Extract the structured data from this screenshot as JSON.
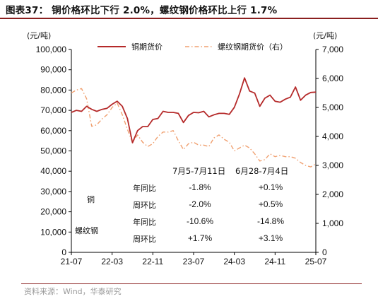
{
  "title": "图表37：  铜价格环比下行 2.0%，螺纹钢价格环比上行 1.7%",
  "source": "资料来源：Wind，华泰研究",
  "colors": {
    "copper": "#b52a2a",
    "rebar": "#f0a070",
    "rule": "#8a1f1f"
  },
  "chart_data": {
    "type": "line",
    "title": "",
    "left_unit": "(元/吨)",
    "right_unit": "(元/吨)",
    "ylim_left": [
      0,
      100000
    ],
    "ylim_right": [
      0,
      7000
    ],
    "y_ticks_left": [
      "0",
      "10,000",
      "20,000",
      "30,000",
      "40,000",
      "50,000",
      "60,000",
      "70,000",
      "80,000",
      "90,000",
      "100,000"
    ],
    "y_ticks_right": [
      "0",
      "1,000",
      "2,000",
      "3,000",
      "4,000",
      "5,000",
      "6,000",
      "7,000"
    ],
    "x_ticks": [
      "21-07",
      "22-03",
      "22-11",
      "23-07",
      "24-03",
      "24-11",
      "25-07"
    ],
    "legend_position": "top",
    "series": [
      {
        "name": "铜期货价",
        "axis": "left",
        "style": "solid",
        "points": [
          [
            "21-07",
            69000
          ],
          [
            "21-08",
            70000
          ],
          [
            "21-09",
            69500
          ],
          [
            "21-10",
            72000
          ],
          [
            "21-11",
            70500
          ],
          [
            "21-12",
            69500
          ],
          [
            "22-01",
            70500
          ],
          [
            "22-02",
            71000
          ],
          [
            "22-03",
            73000
          ],
          [
            "22-04",
            74500
          ],
          [
            "22-05",
            72000
          ],
          [
            "22-06",
            66000
          ],
          [
            "22-07",
            54000
          ],
          [
            "22-08",
            60000
          ],
          [
            "22-09",
            62000
          ],
          [
            "22-10",
            62000
          ],
          [
            "22-11",
            65500
          ],
          [
            "22-12",
            66000
          ],
          [
            "23-01",
            69500
          ],
          [
            "23-02",
            69000
          ],
          [
            "23-03",
            69000
          ],
          [
            "23-04",
            68500
          ],
          [
            "23-05",
            64000
          ],
          [
            "23-06",
            67500
          ],
          [
            "23-07",
            69000
          ],
          [
            "23-08",
            68800
          ],
          [
            "23-09",
            69500
          ],
          [
            "23-10",
            66800
          ],
          [
            "23-11",
            67800
          ],
          [
            "23-12",
            68500
          ],
          [
            "24-01",
            68500
          ],
          [
            "24-02",
            68000
          ],
          [
            "24-03",
            71500
          ],
          [
            "24-04",
            78000
          ],
          [
            "24-05",
            86000
          ],
          [
            "24-06",
            79500
          ],
          [
            "24-07",
            78500
          ],
          [
            "24-08",
            72000
          ],
          [
            "24-09",
            76000
          ],
          [
            "24-10",
            77500
          ],
          [
            "24-11",
            74500
          ],
          [
            "24-12",
            74000
          ],
          [
            "25-01",
            75500
          ],
          [
            "25-02",
            76500
          ],
          [
            "25-03",
            81500
          ],
          [
            "25-04",
            75000
          ],
          [
            "25-05",
            77500
          ],
          [
            "25-06",
            78800
          ],
          [
            "25-07",
            79000
          ]
        ]
      },
      {
        "name": "螺纹钢期货价（右）",
        "axis": "right",
        "style": "dashdot",
        "points": [
          [
            "21-07",
            5500
          ],
          [
            "21-08",
            5600
          ],
          [
            "21-09",
            5650
          ],
          [
            "21-10",
            5300
          ],
          [
            "21-11",
            4350
          ],
          [
            "21-12",
            4400
          ],
          [
            "22-01",
            4600
          ],
          [
            "22-02",
            4750
          ],
          [
            "22-03",
            5000
          ],
          [
            "22-04",
            5150
          ],
          [
            "22-05",
            4750
          ],
          [
            "22-06",
            4250
          ],
          [
            "22-07",
            3800
          ],
          [
            "22-08",
            4050
          ],
          [
            "22-09",
            3800
          ],
          [
            "22-10",
            3650
          ],
          [
            "22-11",
            3750
          ],
          [
            "22-12",
            4000
          ],
          [
            "23-01",
            4150
          ],
          [
            "23-02",
            4150
          ],
          [
            "23-03",
            4200
          ],
          [
            "23-04",
            3850
          ],
          [
            "23-05",
            3550
          ],
          [
            "23-06",
            3750
          ],
          [
            "23-07",
            3800
          ],
          [
            "23-08",
            3700
          ],
          [
            "23-09",
            3700
          ],
          [
            "23-10",
            3650
          ],
          [
            "23-11",
            3950
          ],
          [
            "23-12",
            4050
          ],
          [
            "24-01",
            3900
          ],
          [
            "24-02",
            3800
          ],
          [
            "24-03",
            3500
          ],
          [
            "24-04",
            3600
          ],
          [
            "24-05",
            3700
          ],
          [
            "24-06",
            3600
          ],
          [
            "24-07",
            3400
          ],
          [
            "24-08",
            3150
          ],
          [
            "24-09",
            3200
          ],
          [
            "24-10",
            3400
          ],
          [
            "24-11",
            3300
          ],
          [
            "24-12",
            3350
          ],
          [
            "25-01",
            3300
          ],
          [
            "25-02",
            3300
          ],
          [
            "25-03",
            3250
          ],
          [
            "25-04",
            3100
          ],
          [
            "25-05",
            3000
          ],
          [
            "25-06",
            2950
          ],
          [
            "25-07",
            3050
          ]
        ]
      }
    ],
    "table": {
      "columns": [
        "7月5-7月11日",
        "6月28-7月4日"
      ],
      "groups": [
        {
          "name": "铜",
          "rows": [
            {
              "label": "年同比",
              "values": [
                "-1.8%",
                "+0.1%"
              ]
            },
            {
              "label": "周环比",
              "values": [
                "-2.0%",
                "+0.5%"
              ]
            }
          ]
        },
        {
          "name": "螺纹钢",
          "rows": [
            {
              "label": "年同比",
              "values": [
                "-10.6%",
                "-14.8%"
              ]
            },
            {
              "label": "周环比",
              "values": [
                "+1.7%",
                "+3.1%"
              ]
            }
          ]
        }
      ]
    }
  }
}
